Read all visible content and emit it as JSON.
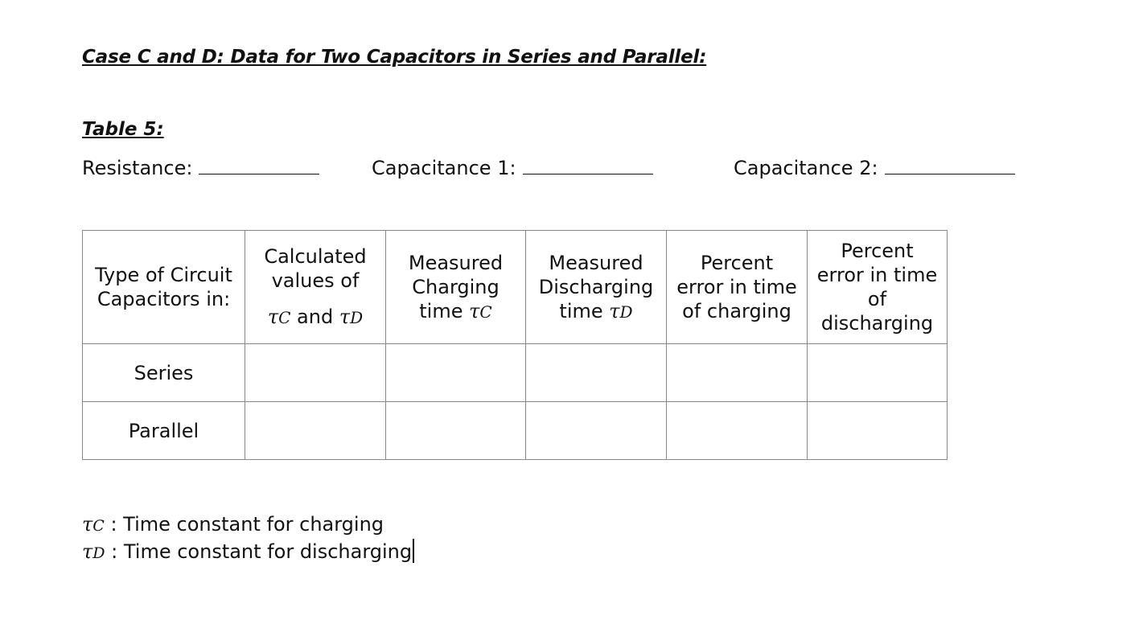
{
  "document": {
    "title": "Case C and D: Data for Two Capacitors in Series and Parallel:",
    "table_label": "Table 5:"
  },
  "fields": {
    "resistance_label": "Resistance:",
    "capacitance1_label": "Capacitance 1:",
    "capacitance2_label": "Capacitance 2:"
  },
  "table": {
    "headers": {
      "type_line1": "Type of Circuit",
      "type_line2": "Capacitors in:",
      "calc_line1": "Calculated",
      "calc_line2": "values of",
      "calc_tau": "τ",
      "calc_sub_c": "C",
      "calc_and": " and ",
      "calc_sub_d": "D",
      "charging_line1": "Measured",
      "charging_line2": "Charging",
      "charging_line3": "time ",
      "charging_tau": "τ",
      "charging_sub": "C",
      "discharging_line1": "Measured",
      "discharging_line2": "Discharging",
      "discharging_line3": "time ",
      "discharging_tau": "τ",
      "discharging_sub": "D",
      "pct_charging_line1": "Percent",
      "pct_charging_line2": "error in time",
      "pct_charging_line3": "of charging",
      "pct_discharging_line1": "Percent",
      "pct_discharging_line2": "error in time",
      "pct_discharging_line3": "of",
      "pct_discharging_line4": "discharging"
    },
    "rows": [
      {
        "label": "Series"
      },
      {
        "label": "Parallel"
      }
    ]
  },
  "notes": {
    "tau": "τ",
    "c_sub": "C",
    "c_text": " : Time constant for charging",
    "d_sub": "D",
    "d_text": " : Time constant for discharging"
  }
}
